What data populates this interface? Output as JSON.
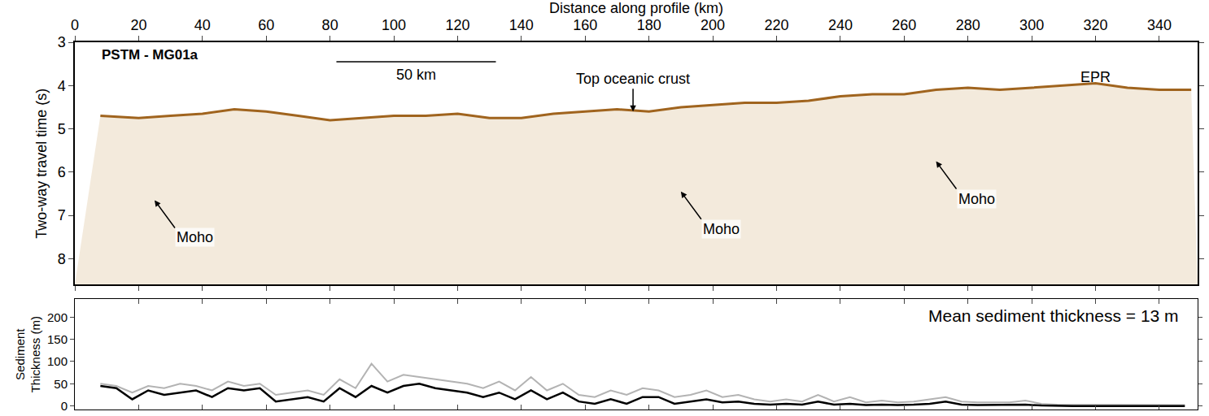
{
  "chart_data": [
    {
      "type": "line",
      "title": "PSTM - MG01a",
      "x_label": "Distance along profile (km)",
      "y_label": "Two-way travel time (s)",
      "xlim": [
        0,
        352
      ],
      "xticks": [
        0,
        20,
        40,
        60,
        80,
        100,
        120,
        140,
        160,
        180,
        200,
        220,
        240,
        260,
        280,
        300,
        320,
        340
      ],
      "ylim": [
        8.6,
        3
      ],
      "yticks": [
        3,
        4,
        5,
        6,
        7,
        8
      ],
      "series": [
        {
          "color": "#a0641e",
          "x": [
            8,
            20,
            30,
            40,
            50,
            60,
            70,
            80,
            90,
            100,
            110,
            120,
            130,
            140,
            150,
            160,
            170,
            180,
            190,
            200,
            210,
            220,
            230,
            240,
            250,
            260,
            270,
            280,
            290,
            300,
            310,
            320,
            330,
            340,
            350
          ],
          "values": [
            4.7,
            4.75,
            4.7,
            4.65,
            4.55,
            4.6,
            4.7,
            4.8,
            4.75,
            4.7,
            4.7,
            4.65,
            4.75,
            4.75,
            4.65,
            4.6,
            4.55,
            4.6,
            4.5,
            4.45,
            4.4,
            4.4,
            4.35,
            4.25,
            4.2,
            4.2,
            4.1,
            4.05,
            4.1,
            4.05,
            4.0,
            3.95,
            4.05,
            4.1,
            4.1
          ]
        }
      ],
      "annotations": [
        {
          "text": "Top oceanic crust",
          "x": 175,
          "y": 4.6,
          "arrow": true
        },
        {
          "text": "Moho",
          "x": 25,
          "y": 6.65,
          "arrow": true
        },
        {
          "text": "Moho",
          "x": 190,
          "y": 6.45,
          "arrow": true
        },
        {
          "text": "Moho",
          "x": 270,
          "y": 5.75,
          "arrow": true
        },
        {
          "text": "EPR",
          "x": 320,
          "y": 3.8,
          "arrow": false
        }
      ],
      "scale_bar": {
        "x": [
          82,
          132
        ],
        "y": 3.45,
        "label": "50 km"
      }
    },
    {
      "type": "line",
      "y_label": "Sediment Thickness (m)",
      "xlim": [
        0,
        352
      ],
      "xticks": [
        0,
        20,
        40,
        60,
        80,
        100,
        120,
        140,
        160,
        180,
        200,
        220,
        240,
        260,
        280,
        300,
        320,
        340
      ],
      "ylim": [
        -8,
        240
      ],
      "yticks": [
        0,
        50,
        100,
        150,
        200
      ],
      "tick_labels": "y",
      "x": [
        8,
        13,
        18,
        23,
        28,
        33,
        38,
        43,
        48,
        53,
        58,
        63,
        68,
        73,
        78,
        83,
        88,
        93,
        98,
        103,
        108,
        113,
        118,
        123,
        128,
        133,
        138,
        143,
        148,
        153,
        158,
        163,
        168,
        173,
        178,
        183,
        188,
        193,
        198,
        203,
        208,
        213,
        218,
        223,
        228,
        233,
        238,
        243,
        248,
        253,
        258,
        263,
        268,
        273,
        278,
        283,
        288,
        293,
        298,
        303,
        308,
        313,
        318,
        323,
        328,
        333,
        338,
        343,
        348
      ],
      "series": [
        {
          "color": "#b3b3b3",
          "values": [
            50,
            45,
            30,
            45,
            40,
            50,
            45,
            35,
            55,
            45,
            50,
            25,
            30,
            35,
            25,
            60,
            40,
            95,
            55,
            70,
            65,
            60,
            55,
            50,
            40,
            55,
            35,
            65,
            35,
            50,
            25,
            20,
            35,
            25,
            40,
            35,
            20,
            25,
            35,
            20,
            25,
            15,
            10,
            15,
            10,
            25,
            10,
            20,
            8,
            12,
            8,
            10,
            15,
            20,
            10,
            8,
            8,
            8,
            12,
            5,
            3,
            3,
            2,
            2,
            2,
            2,
            2,
            2,
            2
          ]
        },
        {
          "color": "#000000",
          "values": [
            45,
            40,
            15,
            35,
            25,
            30,
            35,
            20,
            40,
            35,
            40,
            10,
            15,
            20,
            10,
            40,
            20,
            45,
            30,
            45,
            50,
            40,
            35,
            30,
            20,
            30,
            15,
            35,
            15,
            30,
            10,
            5,
            15,
            5,
            20,
            20,
            5,
            10,
            15,
            8,
            10,
            5,
            3,
            5,
            3,
            10,
            3,
            5,
            2,
            3,
            2,
            3,
            5,
            10,
            3,
            2,
            2,
            2,
            3,
            1,
            0,
            0,
            0,
            0,
            0,
            0,
            0,
            0,
            0
          ]
        }
      ],
      "annotations": [
        {
          "text": "Mean sediment thickness = 13 m"
        }
      ]
    }
  ]
}
